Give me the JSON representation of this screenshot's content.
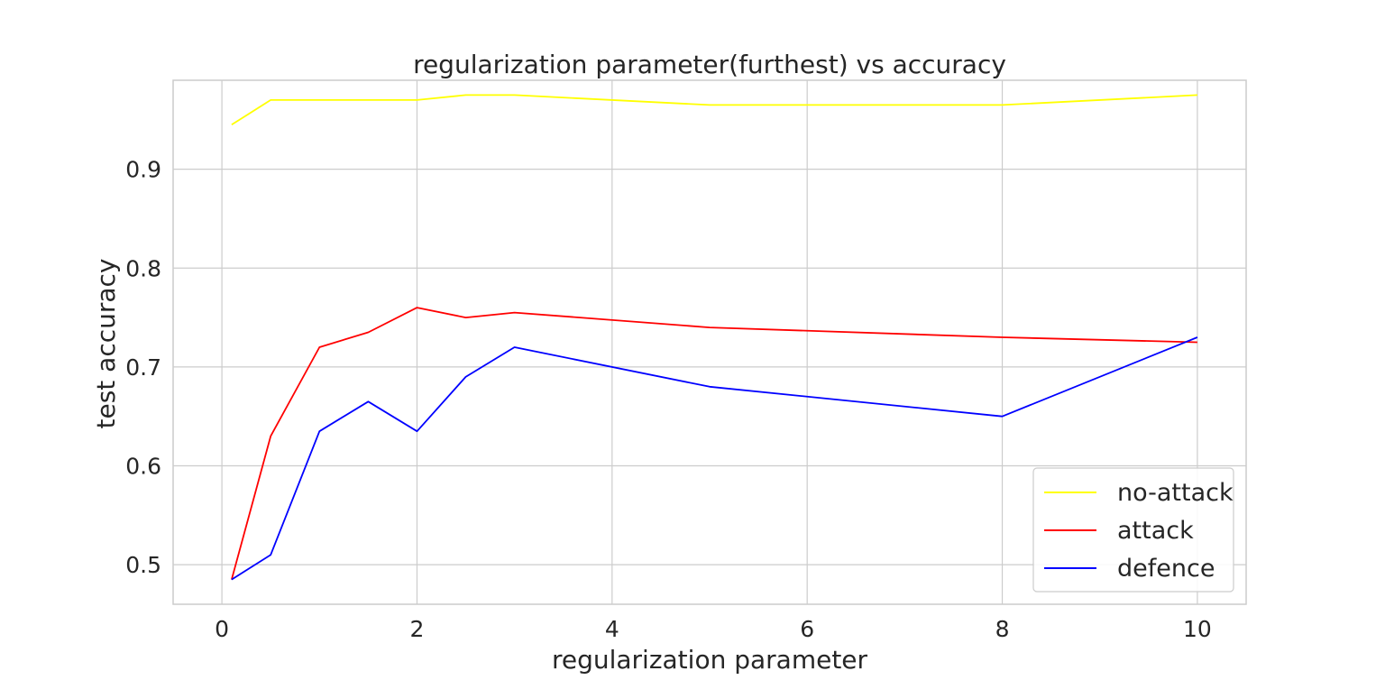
{
  "chart_data": {
    "type": "line",
    "title": "regularization parameter(furthest) vs accuracy",
    "xlabel": "regularization parameter",
    "ylabel": "test accuracy",
    "xlim": [
      -0.5,
      10.5
    ],
    "ylim": [
      0.46,
      0.99
    ],
    "xticks": [
      0,
      2,
      4,
      6,
      8,
      10
    ],
    "yticks": [
      0.5,
      0.6,
      0.7,
      0.8,
      0.9
    ],
    "grid": true,
    "legend_position": "lower-right",
    "x": [
      0.1,
      0.5,
      1.0,
      1.5,
      2.0,
      2.5,
      3.0,
      5.0,
      8.0,
      10.0
    ],
    "series": [
      {
        "name": "no-attack",
        "color": "#ffff00",
        "values": [
          0.945,
          0.97,
          0.97,
          0.97,
          0.97,
          0.975,
          0.975,
          0.965,
          0.965,
          0.975
        ]
      },
      {
        "name": "attack",
        "color": "#ff0000",
        "values": [
          0.485,
          0.63,
          0.72,
          0.735,
          0.76,
          0.75,
          0.755,
          0.74,
          0.73,
          0.725
        ]
      },
      {
        "name": "defence",
        "color": "#0000ff",
        "values": [
          0.485,
          0.51,
          0.635,
          0.665,
          0.635,
          0.69,
          0.72,
          0.68,
          0.65,
          0.73
        ]
      }
    ]
  }
}
